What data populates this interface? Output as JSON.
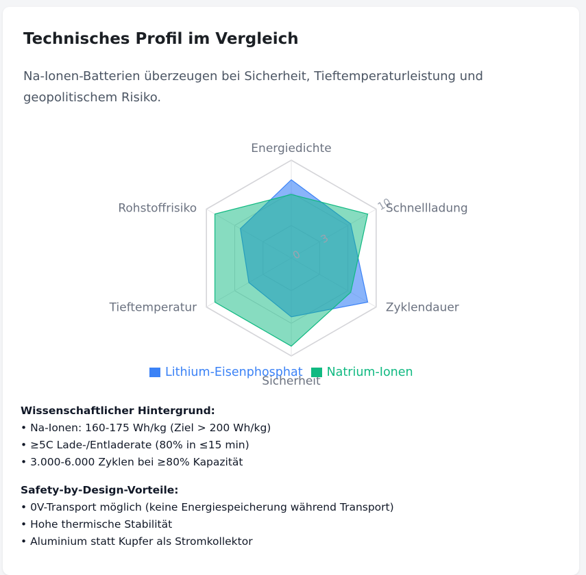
{
  "header": {
    "title": "Technisches Profil im Vergleich",
    "subtitle": "Na-Ionen-Batterien überzeugen bei Sicherheit, Tieftemperaturleistung und geopolitischem Risiko."
  },
  "chart_data": {
    "type": "radar",
    "categories": [
      "Energiedichte",
      "Schnellladung",
      "Zyklendauer",
      "Sicherheit",
      "Tieftemperatur",
      "Rohstoffrisiko"
    ],
    "r_ticks": [
      "0",
      "3",
      "10"
    ],
    "rlim": [
      0,
      10
    ],
    "series": [
      {
        "name": "Lithium-Eisenphosphat",
        "values": [
          8,
          7,
          9,
          6,
          5,
          6
        ],
        "color": "#3b82f6"
      },
      {
        "name": "Natrium-Ionen",
        "values": [
          6.5,
          9,
          7,
          9,
          9,
          9
        ],
        "color": "#10b981"
      }
    ],
    "legend": "bottom",
    "grid": true
  },
  "notes": [
    {
      "title": "Wissenschaftlicher Hintergrund:",
      "items": [
        "• Na-Ionen: 160-175 Wh/kg (Ziel > 200 Wh/kg)",
        "• ≥5C Lade-/Entladerate (80% in ≤15 min)",
        "• 3.000-6.000 Zyklen bei ≥80% Kapazität"
      ]
    },
    {
      "title": "Safety-by-Design-Vorteile:",
      "items": [
        "• 0V-Transport möglich (keine Energiespeicherung während Transport)",
        "• Hohe thermische Stabilität",
        "• Aluminium statt Kupfer als Stromkollektor"
      ]
    }
  ]
}
